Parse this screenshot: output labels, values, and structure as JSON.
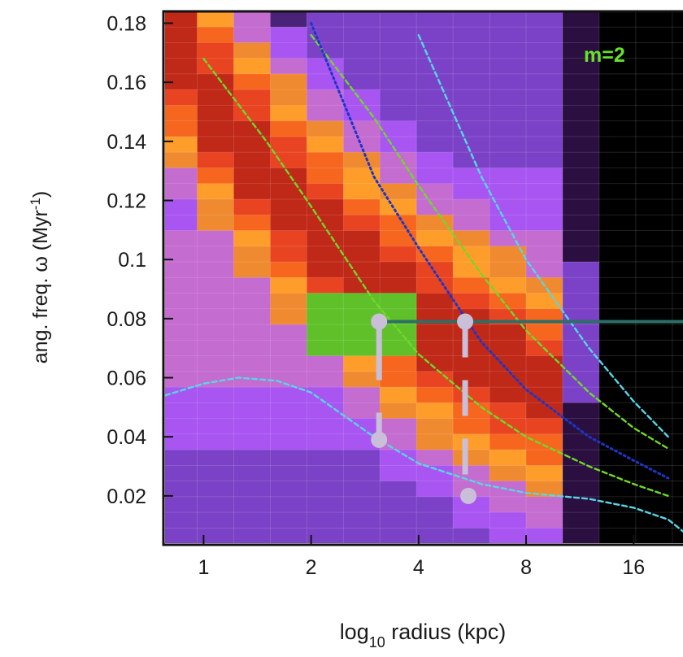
{
  "chart_data": {
    "type": "heatmap",
    "annotation": "m=2",
    "xlabel": {
      "prefix": "log",
      "sub": "10",
      "suffix": " radius (kpc)"
    },
    "ylabel": {
      "text": "ang. freq. ω (Myr",
      "sup": "-1",
      "close": ")"
    },
    "x_scale": "log2",
    "xlim": [
      0.78,
      22
    ],
    "ylim": [
      0.004,
      0.184
    ],
    "x_ticks": [
      1,
      2,
      4,
      8,
      16
    ],
    "x_tick_labels": [
      "1",
      "2",
      "4",
      "8",
      "16"
    ],
    "y_ticks": [
      0.02,
      0.04,
      0.06,
      0.08,
      0.1,
      0.12,
      0.14,
      0.16,
      0.18
    ],
    "y_tick_labels": [
      "0.02",
      "0.04",
      "0.06",
      "0.08",
      "0.1",
      "0.12",
      "0.14",
      "0.16",
      "0.18"
    ],
    "colors": {
      "cmap": [
        "#000000",
        "#2a0f40",
        "#4a2378",
        "#7b42c8",
        "#a855f2",
        "#c46cd0",
        "#f08a30",
        "#ff9d2a",
        "#f6661f",
        "#e84422",
        "#c02818",
        "#466a18",
        "#5fc02a"
      ],
      "green_curve": "#6fd92a",
      "cyan_curve": "#57d6e6",
      "blue_curve": "#1d36c8",
      "marker": "#c9bfd8",
      "horizontal_line": "#2d6e66"
    },
    "heatmap_bins": {
      "x_log2_min": -0.4,
      "x_log2_step": 0.34,
      "nx": 15,
      "y_min": 0.004,
      "y_step": 0.0053,
      "ny": 34
    },
    "curves": [
      {
        "name": "omega-m2",
        "color": "green_curve",
        "style": "dashed",
        "x": [
          1.0,
          1.5,
          2.0,
          3.0,
          4.0,
          6.0,
          8.0,
          12.0,
          16.0,
          20.0
        ],
        "y": [
          0.168,
          0.14,
          0.118,
          0.086,
          0.068,
          0.05,
          0.04,
          0.03,
          0.024,
          0.02
        ]
      },
      {
        "name": "omega-plus-kappa",
        "color": "green_curve",
        "style": "dashed",
        "x": [
          2.0,
          3.0,
          4.0,
          6.0,
          8.0,
          12.0,
          16.0,
          20.0
        ],
        "y": [
          0.176,
          0.148,
          0.125,
          0.095,
          0.076,
          0.055,
          0.043,
          0.036
        ]
      },
      {
        "name": "omega-blue",
        "color": "blue_curve",
        "style": "dotted",
        "x": [
          2.0,
          3.0,
          4.0,
          6.0,
          8.0,
          12.0,
          16.0,
          20.0
        ],
        "y": [
          0.18,
          0.128,
          0.104,
          0.072,
          0.056,
          0.04,
          0.032,
          0.026
        ]
      },
      {
        "name": "omega-plus-kappa-cyan",
        "color": "cyan_curve",
        "style": "dashed",
        "x": [
          4.0,
          6.0,
          8.0,
          12.0,
          16.0,
          20.0
        ],
        "y": [
          0.176,
          0.128,
          0.1,
          0.07,
          0.052,
          0.04
        ]
      },
      {
        "name": "omega-minus-kappa-cyan",
        "color": "cyan_curve",
        "style": "dashed",
        "x": [
          0.78,
          1.0,
          1.25,
          1.6,
          2.0,
          3.0,
          4.0,
          6.0,
          8.0,
          12.0,
          16.0,
          20.0,
          22.0
        ],
        "y": [
          0.054,
          0.058,
          0.06,
          0.059,
          0.055,
          0.04,
          0.031,
          0.024,
          0.021,
          0.019,
          0.016,
          0.012,
          0.008
        ]
      }
    ],
    "resonance_markers": [
      {
        "x": 3.1,
        "y_top": 0.079,
        "y_bottom": 0.039,
        "style": "solid"
      },
      {
        "x": 5.4,
        "y_top": 0.079,
        "y_bottom": 0.02,
        "style": "dashed"
      }
    ],
    "pattern_speed_line": {
      "y": 0.079,
      "x_start": 3.1,
      "x_end": 22.0
    }
  }
}
